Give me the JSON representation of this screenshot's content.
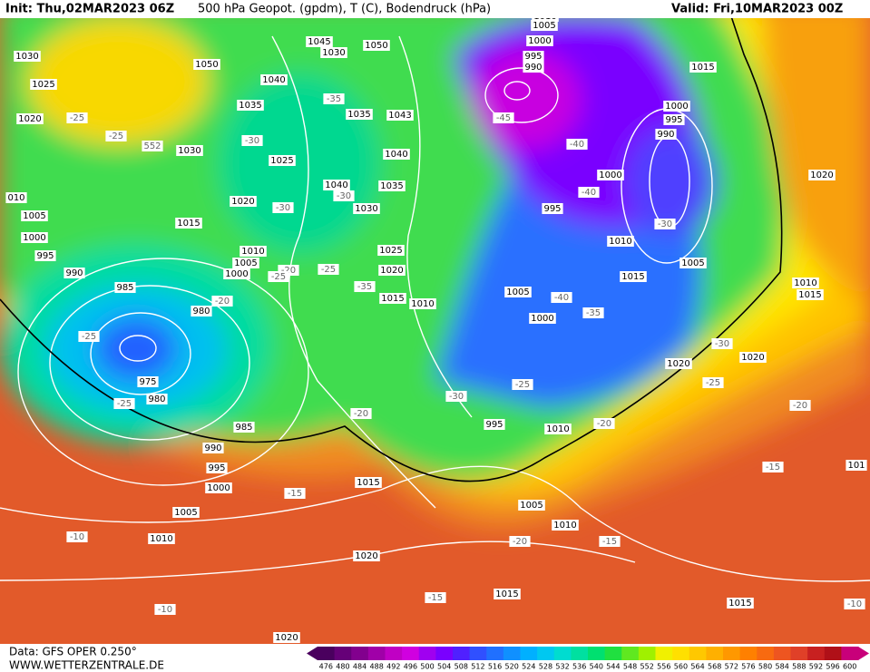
{
  "header": {
    "init": "Init: Thu,02MAR2023 06Z",
    "title": "500 hPa Geopot. (gpdm), T (C), Bodendruck (hPa)",
    "valid": "Valid: Fri,10MAR2023 00Z"
  },
  "map": {
    "isobar_labels": [
      "1030",
      "1025",
      "1020",
      "1050",
      "1045",
      "1050",
      "1030",
      "1040",
      "1035",
      "1035",
      "1043",
      "1030",
      "1025",
      "1040",
      "1040",
      "1035",
      "1020",
      "1030",
      "1015",
      "1005",
      "010",
      "1000",
      "995",
      "1010",
      "1005",
      "1000",
      "1025",
      "1020",
      "1015",
      "1010",
      "990",
      "985",
      "980",
      "975",
      "980",
      "985",
      "990",
      "995",
      "1000",
      "1005",
      "1010",
      "1015",
      "1020",
      "1020",
      "1015",
      "1010",
      "1005",
      "1010",
      "995",
      "1000",
      "1005",
      "1015",
      "1010",
      "1005",
      "1000",
      "995",
      "990",
      "995",
      "1000",
      "1015",
      "1000",
      "995",
      "990",
      "1005",
      "1010",
      "1020",
      "1010",
      "1015",
      "1020",
      "1020",
      "1015",
      "101"
    ],
    "temperature_labels": [
      "-25",
      "-25",
      "552",
      "-30",
      "-35",
      "-30",
      "-30",
      "-25",
      "-20",
      "-25",
      "-35",
      "-20",
      "-25",
      "-25",
      "-20",
      "-15",
      "-10",
      "-10",
      "-15",
      "-15",
      "-20",
      "-20",
      "-30",
      "-25",
      "-25",
      "-30",
      "-20",
      "-15",
      "-10",
      "-40",
      "-35",
      "-30",
      "-40",
      "-40",
      "-45"
    ]
  },
  "footer": {
    "data_source": "Data: GFS OPER 0.250°",
    "website": "WWW.WETTERZENTRALE.DE"
  },
  "colorbar": {
    "labels": [
      476,
      480,
      484,
      488,
      492,
      496,
      500,
      504,
      508,
      512,
      516,
      520,
      524,
      528,
      532,
      536,
      540,
      544,
      548,
      552,
      556,
      560,
      564,
      568,
      572,
      576,
      580,
      584,
      588,
      592,
      596,
      600
    ],
    "colors": [
      "#4a005e",
      "#660078",
      "#82008e",
      "#a000a8",
      "#c000c4",
      "#d000e0",
      "#a000f0",
      "#7a00ff",
      "#5020ff",
      "#3050ff",
      "#2070ff",
      "#1090ff",
      "#00b0ff",
      "#00c8f0",
      "#00dcd0",
      "#00e0a0",
      "#00e070",
      "#20e040",
      "#60e820",
      "#a0f000",
      "#f0f000",
      "#ffe000",
      "#ffc800",
      "#ffb000",
      "#ff9800",
      "#ff8000",
      "#f86a10",
      "#ee5520",
      "#e04028",
      "#c82020",
      "#b01018",
      "#c8007a"
    ]
  }
}
